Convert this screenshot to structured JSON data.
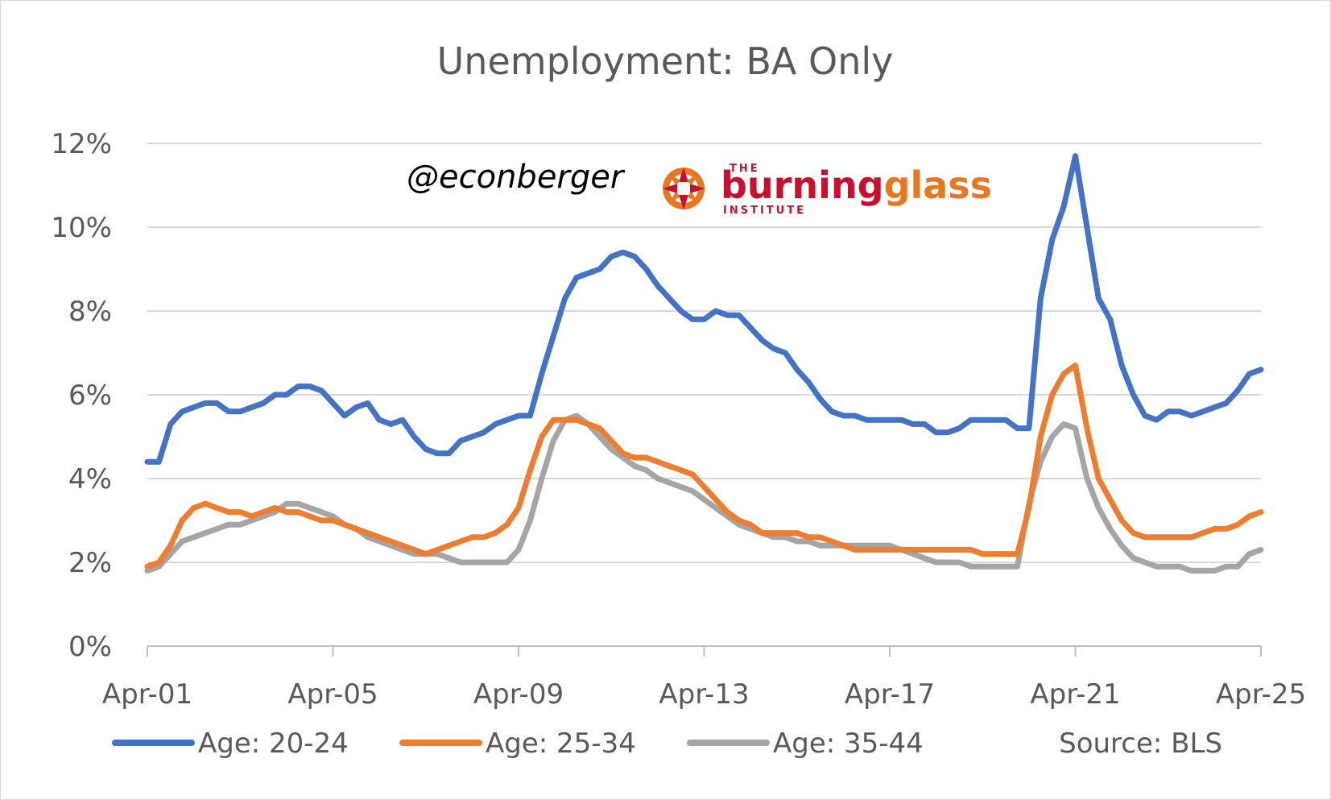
{
  "chart_data": {
    "type": "line",
    "title": "Unemployment: BA Only",
    "xlabel": "",
    "ylabel": "",
    "ylim": [
      0,
      12
    ],
    "y_ticks": [
      "0%",
      "2%",
      "4%",
      "6%",
      "8%",
      "10%",
      "12%"
    ],
    "x_ticks": [
      "Apr-01",
      "Apr-05",
      "Apr-09",
      "Apr-13",
      "Apr-17",
      "Apr-21",
      "Apr-25"
    ],
    "xlim": [
      2001.25,
      2025.25
    ],
    "grid": true,
    "legend_position": "bottom",
    "source": "Source: BLS",
    "series": [
      {
        "name": "Age: 20-24",
        "color": "#4472c4",
        "points": [
          [
            2001.25,
            4.4
          ],
          [
            2001.5,
            4.4
          ],
          [
            2001.75,
            5.3
          ],
          [
            2002.0,
            5.6
          ],
          [
            2002.25,
            5.7
          ],
          [
            2002.5,
            5.8
          ],
          [
            2002.75,
            5.8
          ],
          [
            2003.0,
            5.6
          ],
          [
            2003.25,
            5.6
          ],
          [
            2003.5,
            5.7
          ],
          [
            2003.75,
            5.8
          ],
          [
            2004.0,
            6.0
          ],
          [
            2004.25,
            6.0
          ],
          [
            2004.5,
            6.2
          ],
          [
            2004.75,
            6.2
          ],
          [
            2005.0,
            6.1
          ],
          [
            2005.25,
            5.8
          ],
          [
            2005.5,
            5.5
          ],
          [
            2005.75,
            5.7
          ],
          [
            2006.0,
            5.8
          ],
          [
            2006.25,
            5.4
          ],
          [
            2006.5,
            5.3
          ],
          [
            2006.75,
            5.4
          ],
          [
            2007.0,
            5.0
          ],
          [
            2007.25,
            4.7
          ],
          [
            2007.5,
            4.6
          ],
          [
            2007.75,
            4.6
          ],
          [
            2008.0,
            4.9
          ],
          [
            2008.25,
            5.0
          ],
          [
            2008.5,
            5.1
          ],
          [
            2008.75,
            5.3
          ],
          [
            2009.0,
            5.4
          ],
          [
            2009.25,
            5.5
          ],
          [
            2009.5,
            5.5
          ],
          [
            2009.75,
            6.5
          ],
          [
            2010.0,
            7.4
          ],
          [
            2010.25,
            8.3
          ],
          [
            2010.5,
            8.8
          ],
          [
            2010.75,
            8.9
          ],
          [
            2011.0,
            9.0
          ],
          [
            2011.25,
            9.3
          ],
          [
            2011.5,
            9.4
          ],
          [
            2011.75,
            9.3
          ],
          [
            2012.0,
            9.0
          ],
          [
            2012.25,
            8.6
          ],
          [
            2012.5,
            8.3
          ],
          [
            2012.75,
            8.0
          ],
          [
            2013.0,
            7.8
          ],
          [
            2013.25,
            7.8
          ],
          [
            2013.5,
            8.0
          ],
          [
            2013.75,
            7.9
          ],
          [
            2014.0,
            7.9
          ],
          [
            2014.25,
            7.6
          ],
          [
            2014.5,
            7.3
          ],
          [
            2014.75,
            7.1
          ],
          [
            2015.0,
            7.0
          ],
          [
            2015.25,
            6.6
          ],
          [
            2015.5,
            6.3
          ],
          [
            2015.75,
            5.9
          ],
          [
            2016.0,
            5.6
          ],
          [
            2016.25,
            5.5
          ],
          [
            2016.5,
            5.5
          ],
          [
            2016.75,
            5.4
          ],
          [
            2017.0,
            5.4
          ],
          [
            2017.25,
            5.4
          ],
          [
            2017.5,
            5.4
          ],
          [
            2017.75,
            5.3
          ],
          [
            2018.0,
            5.3
          ],
          [
            2018.25,
            5.1
          ],
          [
            2018.5,
            5.1
          ],
          [
            2018.75,
            5.2
          ],
          [
            2019.0,
            5.4
          ],
          [
            2019.25,
            5.4
          ],
          [
            2019.5,
            5.4
          ],
          [
            2019.75,
            5.4
          ],
          [
            2020.0,
            5.2
          ],
          [
            2020.25,
            5.2
          ],
          [
            2020.5,
            8.3
          ],
          [
            2020.75,
            9.7
          ],
          [
            2021.0,
            10.5
          ],
          [
            2021.25,
            11.7
          ],
          [
            2021.5,
            10.0
          ],
          [
            2021.75,
            8.3
          ],
          [
            2022.0,
            7.8
          ],
          [
            2022.25,
            6.7
          ],
          [
            2022.5,
            6.0
          ],
          [
            2022.75,
            5.5
          ],
          [
            2023.0,
            5.4
          ],
          [
            2023.25,
            5.6
          ],
          [
            2023.5,
            5.6
          ],
          [
            2023.75,
            5.5
          ],
          [
            2024.0,
            5.6
          ],
          [
            2024.25,
            5.7
          ],
          [
            2024.5,
            5.8
          ],
          [
            2024.75,
            6.1
          ],
          [
            2025.0,
            6.5
          ],
          [
            2025.25,
            6.6
          ]
        ]
      },
      {
        "name": "Age: 25-34",
        "color": "#ed7d31",
        "points": [
          [
            2001.25,
            1.9
          ],
          [
            2001.5,
            2.0
          ],
          [
            2001.75,
            2.4
          ],
          [
            2002.0,
            3.0
          ],
          [
            2002.25,
            3.3
          ],
          [
            2002.5,
            3.4
          ],
          [
            2002.75,
            3.3
          ],
          [
            2003.0,
            3.2
          ],
          [
            2003.25,
            3.2
          ],
          [
            2003.5,
            3.1
          ],
          [
            2003.75,
            3.2
          ],
          [
            2004.0,
            3.3
          ],
          [
            2004.25,
            3.2
          ],
          [
            2004.5,
            3.2
          ],
          [
            2004.75,
            3.1
          ],
          [
            2005.0,
            3.0
          ],
          [
            2005.25,
            3.0
          ],
          [
            2005.5,
            2.9
          ],
          [
            2005.75,
            2.8
          ],
          [
            2006.0,
            2.7
          ],
          [
            2006.25,
            2.6
          ],
          [
            2006.5,
            2.5
          ],
          [
            2006.75,
            2.4
          ],
          [
            2007.0,
            2.3
          ],
          [
            2007.25,
            2.2
          ],
          [
            2007.5,
            2.3
          ],
          [
            2007.75,
            2.4
          ],
          [
            2008.0,
            2.5
          ],
          [
            2008.25,
            2.6
          ],
          [
            2008.5,
            2.6
          ],
          [
            2008.75,
            2.7
          ],
          [
            2009.0,
            2.9
          ],
          [
            2009.25,
            3.3
          ],
          [
            2009.5,
            4.2
          ],
          [
            2009.75,
            5.0
          ],
          [
            2010.0,
            5.4
          ],
          [
            2010.25,
            5.4
          ],
          [
            2010.5,
            5.4
          ],
          [
            2010.75,
            5.3
          ],
          [
            2011.0,
            5.2
          ],
          [
            2011.25,
            4.9
          ],
          [
            2011.5,
            4.6
          ],
          [
            2011.75,
            4.5
          ],
          [
            2012.0,
            4.5
          ],
          [
            2012.25,
            4.4
          ],
          [
            2012.5,
            4.3
          ],
          [
            2012.75,
            4.2
          ],
          [
            2013.0,
            4.1
          ],
          [
            2013.25,
            3.8
          ],
          [
            2013.5,
            3.5
          ],
          [
            2013.75,
            3.2
          ],
          [
            2014.0,
            3.0
          ],
          [
            2014.25,
            2.9
          ],
          [
            2014.5,
            2.7
          ],
          [
            2014.75,
            2.7
          ],
          [
            2015.0,
            2.7
          ],
          [
            2015.25,
            2.7
          ],
          [
            2015.5,
            2.6
          ],
          [
            2015.75,
            2.6
          ],
          [
            2016.0,
            2.5
          ],
          [
            2016.25,
            2.4
          ],
          [
            2016.5,
            2.3
          ],
          [
            2016.75,
            2.3
          ],
          [
            2017.0,
            2.3
          ],
          [
            2017.25,
            2.3
          ],
          [
            2017.5,
            2.3
          ],
          [
            2017.75,
            2.3
          ],
          [
            2018.0,
            2.3
          ],
          [
            2018.25,
            2.3
          ],
          [
            2018.5,
            2.3
          ],
          [
            2018.75,
            2.3
          ],
          [
            2019.0,
            2.3
          ],
          [
            2019.25,
            2.2
          ],
          [
            2019.5,
            2.2
          ],
          [
            2019.75,
            2.2
          ],
          [
            2020.0,
            2.2
          ],
          [
            2020.25,
            3.3
          ],
          [
            2020.5,
            5.0
          ],
          [
            2020.75,
            6.0
          ],
          [
            2021.0,
            6.5
          ],
          [
            2021.25,
            6.7
          ],
          [
            2021.5,
            5.2
          ],
          [
            2021.75,
            4.0
          ],
          [
            2022.0,
            3.5
          ],
          [
            2022.25,
            3.0
          ],
          [
            2022.5,
            2.7
          ],
          [
            2022.75,
            2.6
          ],
          [
            2023.0,
            2.6
          ],
          [
            2023.25,
            2.6
          ],
          [
            2023.5,
            2.6
          ],
          [
            2023.75,
            2.6
          ],
          [
            2024.0,
            2.7
          ],
          [
            2024.25,
            2.8
          ],
          [
            2024.5,
            2.8
          ],
          [
            2024.75,
            2.9
          ],
          [
            2025.0,
            3.1
          ],
          [
            2025.25,
            3.2
          ]
        ]
      },
      {
        "name": "Age: 35-44",
        "color": "#a5a5a5",
        "points": [
          [
            2001.25,
            1.8
          ],
          [
            2001.5,
            1.9
          ],
          [
            2001.75,
            2.2
          ],
          [
            2002.0,
            2.5
          ],
          [
            2002.25,
            2.6
          ],
          [
            2002.5,
            2.7
          ],
          [
            2002.75,
            2.8
          ],
          [
            2003.0,
            2.9
          ],
          [
            2003.25,
            2.9
          ],
          [
            2003.5,
            3.0
          ],
          [
            2003.75,
            3.1
          ],
          [
            2004.0,
            3.2
          ],
          [
            2004.25,
            3.4
          ],
          [
            2004.5,
            3.4
          ],
          [
            2004.75,
            3.3
          ],
          [
            2005.0,
            3.2
          ],
          [
            2005.25,
            3.1
          ],
          [
            2005.5,
            2.9
          ],
          [
            2005.75,
            2.8
          ],
          [
            2006.0,
            2.6
          ],
          [
            2006.25,
            2.5
          ],
          [
            2006.5,
            2.4
          ],
          [
            2006.75,
            2.3
          ],
          [
            2007.0,
            2.2
          ],
          [
            2007.25,
            2.2
          ],
          [
            2007.5,
            2.2
          ],
          [
            2007.75,
            2.1
          ],
          [
            2008.0,
            2.0
          ],
          [
            2008.25,
            2.0
          ],
          [
            2008.5,
            2.0
          ],
          [
            2008.75,
            2.0
          ],
          [
            2009.0,
            2.0
          ],
          [
            2009.25,
            2.3
          ],
          [
            2009.5,
            3.0
          ],
          [
            2009.75,
            4.0
          ],
          [
            2010.0,
            4.9
          ],
          [
            2010.25,
            5.4
          ],
          [
            2010.5,
            5.5
          ],
          [
            2010.75,
            5.3
          ],
          [
            2011.0,
            5.0
          ],
          [
            2011.25,
            4.7
          ],
          [
            2011.5,
            4.5
          ],
          [
            2011.75,
            4.3
          ],
          [
            2012.0,
            4.2
          ],
          [
            2012.25,
            4.0
          ],
          [
            2012.5,
            3.9
          ],
          [
            2012.75,
            3.8
          ],
          [
            2013.0,
            3.7
          ],
          [
            2013.25,
            3.5
          ],
          [
            2013.5,
            3.3
          ],
          [
            2013.75,
            3.1
          ],
          [
            2014.0,
            2.9
          ],
          [
            2014.25,
            2.8
          ],
          [
            2014.5,
            2.7
          ],
          [
            2014.75,
            2.6
          ],
          [
            2015.0,
            2.6
          ],
          [
            2015.25,
            2.5
          ],
          [
            2015.5,
            2.5
          ],
          [
            2015.75,
            2.4
          ],
          [
            2016.0,
            2.4
          ],
          [
            2016.25,
            2.4
          ],
          [
            2016.5,
            2.4
          ],
          [
            2016.75,
            2.4
          ],
          [
            2017.0,
            2.4
          ],
          [
            2017.25,
            2.4
          ],
          [
            2017.5,
            2.3
          ],
          [
            2017.75,
            2.2
          ],
          [
            2018.0,
            2.1
          ],
          [
            2018.25,
            2.0
          ],
          [
            2018.5,
            2.0
          ],
          [
            2018.75,
            2.0
          ],
          [
            2019.0,
            1.9
          ],
          [
            2019.25,
            1.9
          ],
          [
            2019.5,
            1.9
          ],
          [
            2019.75,
            1.9
          ],
          [
            2020.0,
            1.9
          ],
          [
            2020.25,
            3.4
          ],
          [
            2020.5,
            4.4
          ],
          [
            2020.75,
            5.0
          ],
          [
            2021.0,
            5.3
          ],
          [
            2021.25,
            5.2
          ],
          [
            2021.5,
            4.0
          ],
          [
            2021.75,
            3.3
          ],
          [
            2022.0,
            2.8
          ],
          [
            2022.25,
            2.4
          ],
          [
            2022.5,
            2.1
          ],
          [
            2022.75,
            2.0
          ],
          [
            2023.0,
            1.9
          ],
          [
            2023.25,
            1.9
          ],
          [
            2023.5,
            1.9
          ],
          [
            2023.75,
            1.8
          ],
          [
            2024.0,
            1.8
          ],
          [
            2024.25,
            1.8
          ],
          [
            2024.5,
            1.9
          ],
          [
            2024.75,
            1.9
          ],
          [
            2025.0,
            2.2
          ],
          [
            2025.25,
            2.3
          ]
        ]
      }
    ]
  },
  "watermark": {
    "handle": "@econberger",
    "logo_top": "THE",
    "logo_burning": "burning",
    "logo_glass": "glass",
    "logo_bottom": "INSTITUTE"
  }
}
